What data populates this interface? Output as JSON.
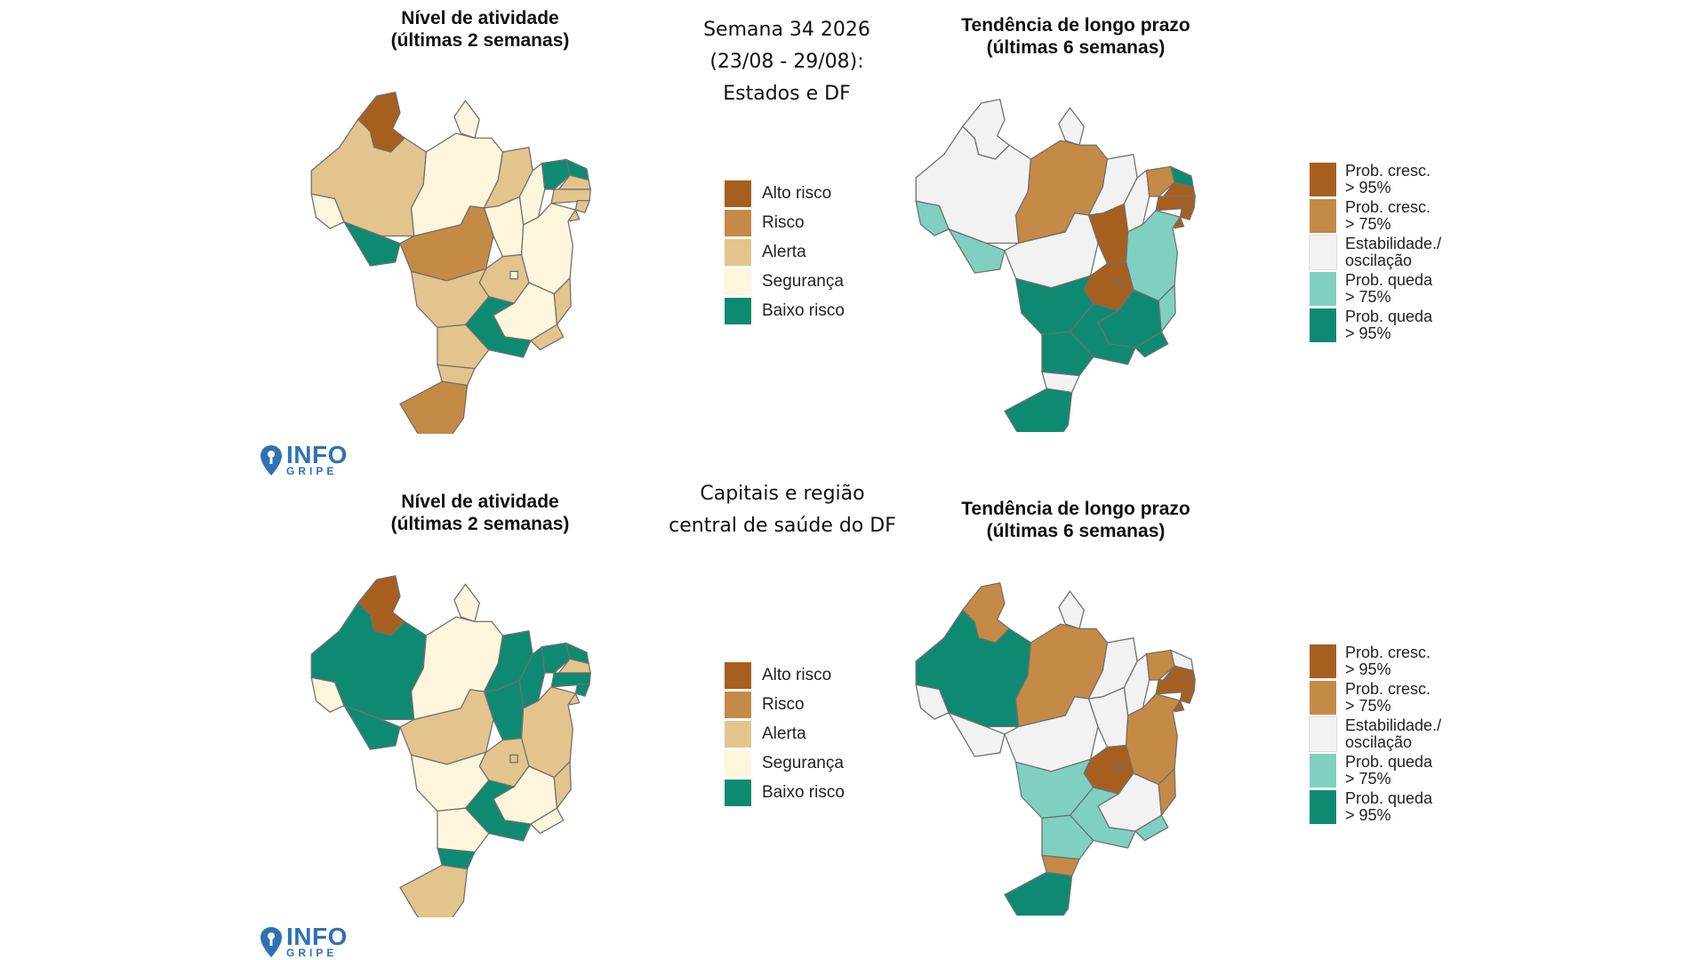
{
  "header": {
    "week_line1": "Semana 34 2026",
    "week_line2": "(23/08 - 29/08):",
    "week_line3": "Estados e DF",
    "capitals_line1": "Capitais e região",
    "capitals_line2": "central de saúde do DF"
  },
  "map_titles": {
    "activity_line1": "Nível de atividade",
    "activity_line2": "(últimas 2 semanas)",
    "trend_line1": "Tendência de longo prazo",
    "trend_line2": "(últimas 6 semanas)"
  },
  "colors": {
    "alto_risco": "#a65f1f",
    "risco": "#c58a45",
    "alerta": "#e2c48c",
    "seguranca": "#fdf6dc",
    "baixo_risco": "#0e8a72",
    "cresc95": "#a65f1f",
    "cresc75": "#c58a45",
    "estab": "#f2f2f2",
    "queda75": "#7fd0c0",
    "queda95": "#0e8a72"
  },
  "activity_legend": [
    "Alto risco",
    "Risco",
    "Alerta",
    "Segurança",
    "Baixo risco"
  ],
  "trend_legend": [
    {
      "l1": "Prob. cresc.",
      "l2": "> 95%"
    },
    {
      "l1": "Prob. cresc.",
      "l2": "> 75%"
    },
    {
      "l1": "Estabilidade./",
      "l2": "oscilação"
    },
    {
      "l1": "Prob. queda",
      "l2": "> 75%"
    },
    {
      "l1": "Prob. queda",
      "l2": "> 95%"
    }
  ],
  "logo": {
    "main": "INFO",
    "sub": "GRIPE"
  },
  "maps": {
    "top_activity": {
      "RR": "alto_risco",
      "AM": "alerta",
      "AC": "seguranca",
      "RO": "baixo_risco",
      "PA": "seguranca",
      "AP": "seguranca",
      "MA": "alerta",
      "PI": "seguranca",
      "CE": "baixo_risco",
      "RN": "baixo_risco",
      "PB": "alerta",
      "PE": "alerta",
      "AL": "alerta",
      "SE": "alerta",
      "BA": "seguranca",
      "TO": "seguranca",
      "MT": "risco",
      "GO": "alerta",
      "DF": "seguranca",
      "MG": "seguranca",
      "ES": "alerta",
      "RJ": "alerta",
      "SP": "baixo_risco",
      "MS": "alerta",
      "PR": "alerta",
      "SC": "alerta",
      "RS": "risco"
    },
    "top_trend": {
      "RR": "estab",
      "AM": "estab",
      "AC": "queda75",
      "RO": "queda75",
      "PA": "cresc75",
      "AP": "estab",
      "MA": "estab",
      "PI": "estab",
      "CE": "cresc75",
      "RN": "queda95",
      "PB": "cresc95",
      "PE": "cresc95",
      "AL": "cresc95",
      "SE": "cresc95",
      "BA": "queda75",
      "TO": "cresc95",
      "MT": "estab",
      "GO": "cresc95",
      "DF": "cresc95",
      "MG": "queda95",
      "ES": "queda75",
      "RJ": "queda95",
      "SP": "queda95",
      "MS": "queda95",
      "PR": "queda95",
      "SC": "estab",
      "RS": "queda95"
    },
    "bottom_activity": {
      "RR": "alto_risco",
      "AM": "baixo_risco",
      "AC": "seguranca",
      "RO": "baixo_risco",
      "PA": "seguranca",
      "AP": "seguranca",
      "MA": "baixo_risco",
      "PI": "baixo_risco",
      "CE": "baixo_risco",
      "RN": "baixo_risco",
      "PB": "alerta",
      "PE": "baixo_risco",
      "AL": "baixo_risco",
      "SE": "alerta",
      "BA": "alerta",
      "TO": "baixo_risco",
      "MT": "alerta",
      "GO": "alerta",
      "DF": "alerta",
      "MG": "seguranca",
      "ES": "alerta",
      "RJ": "seguranca",
      "SP": "baixo_risco",
      "MS": "seguranca",
      "PR": "seguranca",
      "SC": "baixo_risco",
      "RS": "alerta"
    },
    "bottom_trend": {
      "RR": "cresc75",
      "AM": "queda95",
      "AC": "estab",
      "RO": "estab",
      "PA": "cresc75",
      "AP": "estab",
      "MA": "estab",
      "PI": "estab",
      "CE": "cresc75",
      "RN": "estab",
      "PB": "cresc95",
      "PE": "cresc95",
      "AL": "cresc95",
      "SE": "cresc95",
      "BA": "cresc75",
      "TO": "estab",
      "MT": "estab",
      "GO": "cresc95",
      "DF": "cresc95",
      "MG": "estab",
      "ES": "cresc75",
      "RJ": "queda75",
      "SP": "queda75",
      "MS": "queda75",
      "PR": "queda75",
      "SC": "cresc75",
      "RS": "queda95"
    }
  }
}
